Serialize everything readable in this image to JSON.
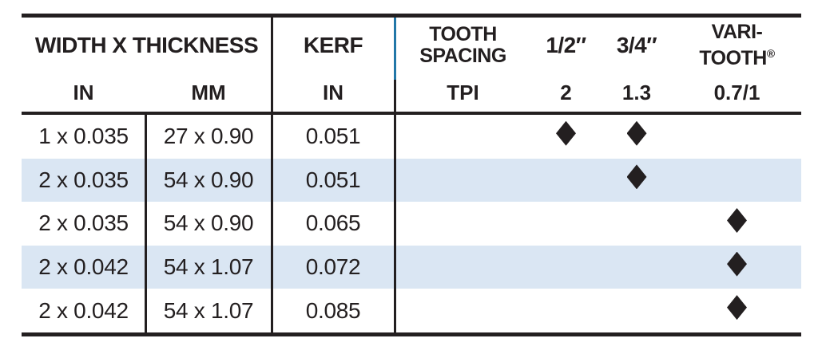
{
  "colors": {
    "ink": "#231f20",
    "stripe_row": "#dae6f3",
    "accent_divider": "#2277a8"
  },
  "table": {
    "header": {
      "width_thickness": {
        "title": "WIDTH X THICKNESS",
        "sub_in": "IN",
        "sub_mm": "MM"
      },
      "kerf": {
        "title": "KERF",
        "sub": "IN"
      },
      "tooth_spacing": {
        "line1": "TOOTH",
        "line2": "SPACING",
        "sub": "TPI"
      },
      "col_half_inch": {
        "title": "1/2″",
        "sub": "2"
      },
      "col_three_quarter_inch": {
        "title": "3/4″",
        "sub": "1.3"
      },
      "col_varitooth": {
        "line1": "VARI-",
        "line2": "TOOTH",
        "reg": "®",
        "sub": "0.7/1"
      }
    },
    "rows": [
      {
        "width_in": "1 x 0.035",
        "width_mm": "27 x 0.90",
        "kerf_in": "0.051",
        "tpi_2": true,
        "tpi_1_3": true,
        "tpi_0_7_1": false
      },
      {
        "width_in": "2 x 0.035",
        "width_mm": "54 x 0.90",
        "kerf_in": "0.051",
        "tpi_2": false,
        "tpi_1_3": true,
        "tpi_0_7_1": false
      },
      {
        "width_in": "2 x 0.035",
        "width_mm": "54 x 0.90",
        "kerf_in": "0.065",
        "tpi_2": false,
        "tpi_1_3": false,
        "tpi_0_7_1": true
      },
      {
        "width_in": "2 x 0.042",
        "width_mm": "54 x 1.07",
        "kerf_in": "0.072",
        "tpi_2": false,
        "tpi_1_3": false,
        "tpi_0_7_1": true
      },
      {
        "width_in": "2 x 0.042",
        "width_mm": "54 x 1.07",
        "kerf_in": "0.085",
        "tpi_2": false,
        "tpi_1_3": false,
        "tpi_0_7_1": true
      }
    ]
  }
}
